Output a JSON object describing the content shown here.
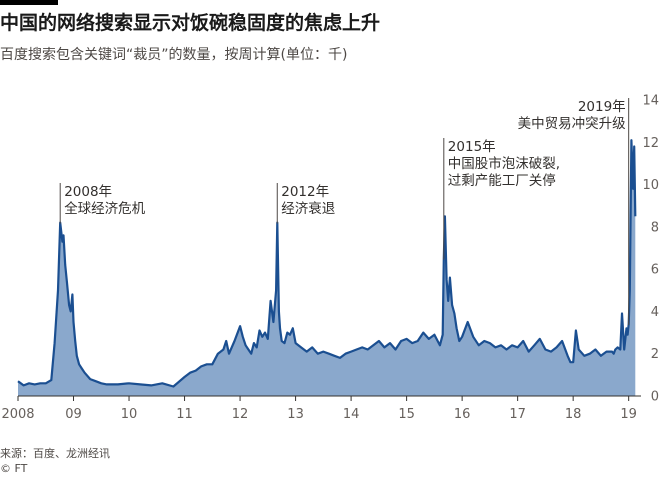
{
  "header": {
    "title": "中国的网络搜索显示对饭碗稳固度的焦虑上升",
    "subtitle": "百度搜索包含关键词“裁员”的数量，按周计算(单位：千)"
  },
  "footer": {
    "source": "来源：百度、龙洲经讯",
    "copyright": "© FT"
  },
  "colors": {
    "line": "#1b4f91",
    "area": "#8aa8cc",
    "axis": "#33302e",
    "tick_text": "#66605c"
  },
  "chart_data": {
    "type": "area",
    "title": "中国的网络搜索显示对饭碗稳固度的焦虑上升",
    "subtitle": "百度搜索包含关键词“裁员”的数量，按周计算(单位：千)",
    "xlabel": "",
    "ylabel": "",
    "xlim": [
      2008.0,
      2019.15
    ],
    "ylim": [
      0,
      14
    ],
    "y_axis_position": "right",
    "grid": false,
    "x_ticks": [
      {
        "value": 2008,
        "label": "2008"
      },
      {
        "value": 2009,
        "label": "09"
      },
      {
        "value": 2010,
        "label": "10"
      },
      {
        "value": 2011,
        "label": "11"
      },
      {
        "value": 2012,
        "label": "12"
      },
      {
        "value": 2013,
        "label": "13"
      },
      {
        "value": 2014,
        "label": "14"
      },
      {
        "value": 2015,
        "label": "15"
      },
      {
        "value": 2016,
        "label": "16"
      },
      {
        "value": 2017,
        "label": "17"
      },
      {
        "value": 2018,
        "label": "18"
      },
      {
        "value": 2019,
        "label": "19"
      }
    ],
    "y_ticks": [
      0,
      2,
      4,
      6,
      8,
      10,
      12,
      14
    ],
    "x": [
      2008.0,
      2008.1,
      2008.2,
      2008.3,
      2008.4,
      2008.5,
      2008.6,
      2008.66,
      2008.72,
      2008.76,
      2008.8,
      2008.82,
      2008.85,
      2008.88,
      2008.92,
      2008.95,
      2008.98,
      2009.0,
      2009.03,
      2009.06,
      2009.1,
      2009.15,
      2009.2,
      2009.3,
      2009.4,
      2009.5,
      2009.6,
      2009.8,
      2010.0,
      2010.2,
      2010.4,
      2010.6,
      2010.8,
      2011.0,
      2011.1,
      2011.2,
      2011.3,
      2011.4,
      2011.5,
      2011.6,
      2011.7,
      2011.75,
      2011.8,
      2011.85,
      2011.9,
      2012.0,
      2012.05,
      2012.1,
      2012.15,
      2012.2,
      2012.25,
      2012.3,
      2012.35,
      2012.4,
      2012.45,
      2012.5,
      2012.55,
      2012.6,
      2012.65,
      2012.67,
      2012.7,
      2012.72,
      2012.75,
      2012.8,
      2012.85,
      2012.9,
      2012.95,
      2013.0,
      2013.1,
      2013.2,
      2013.3,
      2013.4,
      2013.5,
      2013.6,
      2013.7,
      2013.8,
      2013.9,
      2014.0,
      2014.1,
      2014.2,
      2014.3,
      2014.4,
      2014.5,
      2014.6,
      2014.7,
      2014.8,
      2014.9,
      2015.0,
      2015.1,
      2015.2,
      2015.3,
      2015.4,
      2015.5,
      2015.6,
      2015.65,
      2015.67,
      2015.69,
      2015.72,
      2015.75,
      2015.78,
      2015.82,
      2015.86,
      2015.9,
      2015.95,
      2016.0,
      2016.1,
      2016.2,
      2016.3,
      2016.4,
      2016.5,
      2016.6,
      2016.7,
      2016.8,
      2016.9,
      2017.0,
      2017.1,
      2017.2,
      2017.3,
      2017.4,
      2017.5,
      2017.6,
      2017.7,
      2017.8,
      2017.9,
      2017.95,
      2018.0,
      2018.05,
      2018.1,
      2018.2,
      2018.3,
      2018.4,
      2018.5,
      2018.6,
      2018.7,
      2018.73,
      2018.76,
      2018.8,
      2018.85,
      2018.88,
      2018.92,
      2018.96,
      2018.98,
      2019.0,
      2019.02,
      2019.05,
      2019.08,
      2019.1,
      2019.12
    ],
    "series": [
      {
        "values": [
          0.7,
          0.5,
          0.6,
          0.55,
          0.6,
          0.6,
          0.75,
          2.5,
          5.0,
          8.2,
          7.3,
          7.6,
          6.2,
          5.4,
          4.3,
          4.0,
          4.8,
          3.5,
          2.6,
          1.9,
          1.5,
          1.3,
          1.1,
          0.8,
          0.7,
          0.6,
          0.55,
          0.55,
          0.6,
          0.55,
          0.5,
          0.6,
          0.45,
          0.9,
          1.1,
          1.2,
          1.4,
          1.5,
          1.5,
          2.0,
          2.2,
          2.6,
          2.0,
          2.3,
          2.6,
          3.3,
          2.8,
          2.4,
          2.2,
          2.0,
          2.5,
          2.3,
          3.1,
          2.8,
          3.0,
          2.7,
          4.5,
          3.5,
          5.0,
          8.2,
          4.0,
          3.2,
          2.6,
          2.5,
          3.0,
          2.9,
          3.2,
          2.5,
          2.3,
          2.1,
          2.3,
          2.0,
          2.1,
          2.0,
          1.9,
          1.8,
          2.0,
          2.1,
          2.2,
          2.3,
          2.2,
          2.4,
          2.6,
          2.3,
          2.5,
          2.2,
          2.6,
          2.7,
          2.5,
          2.6,
          3.0,
          2.7,
          2.9,
          2.4,
          2.9,
          6.5,
          8.5,
          5.5,
          4.5,
          5.6,
          4.3,
          3.9,
          3.2,
          2.6,
          2.8,
          3.5,
          2.8,
          2.4,
          2.6,
          2.5,
          2.3,
          2.4,
          2.2,
          2.4,
          2.3,
          2.6,
          2.1,
          2.4,
          2.7,
          2.2,
          2.1,
          2.3,
          2.6,
          1.9,
          1.6,
          1.6,
          3.1,
          2.2,
          1.9,
          2.0,
          2.2,
          1.9,
          2.1,
          2.1,
          2.0,
          2.2,
          2.3,
          2.2,
          3.9,
          2.2,
          3.2,
          2.9,
          3.4,
          5.0,
          12.1,
          9.8,
          11.8,
          8.5
        ]
      }
    ],
    "annotations": [
      {
        "x": 2008.76,
        "lines": [
          "2008年",
          "全球经济危机"
        ]
      },
      {
        "x": 2012.67,
        "lines": [
          "2012年",
          "经济衰退"
        ]
      },
      {
        "x": 2015.67,
        "lines": [
          "2015年",
          "中国股市泡沫破裂,",
          "过剩产能工厂关停"
        ]
      },
      {
        "x": 2019.0,
        "lines": [
          "2019年",
          "美中贸易冲突升级"
        ],
        "align": "end"
      }
    ]
  }
}
